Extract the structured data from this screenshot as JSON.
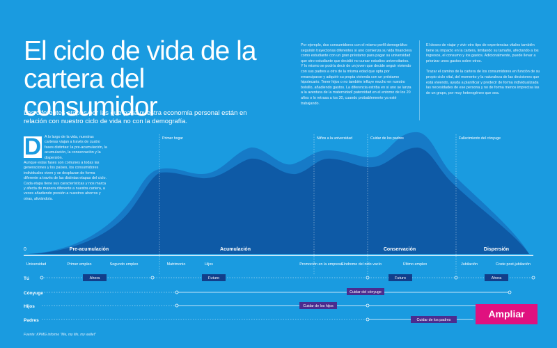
{
  "title": "El ciclo de vida de la cartera del consumidor",
  "subtitle": "Las diferentes etapas por las que pasa nuestra economía personal están en relación con nuestro ciclo de vida no con la demografía.",
  "column1": "Por ejemplo, dos consumidores con el mismo perfil demográfico seguirán trayectorias diferentes si uno comienza su vida financiera como estudiante con un gran préstamo para pagar su universidad que otro estudiante que decidió no cursar estudios universitarios. Y lo mismo se podría decir de un joven que decide seguir viviendo con sus padres a otro de la misma edad que opta por emanciparse y adquirir su propia vivienda con un préstamo hipotecario. Tener hijos o no también influye mucho en nuestro bolsillo, añadiendo gastos. La diferencia estriba en si uno se lanza a la aventura de la maternidad/ paternidad en el entorno de los 20 años o lo retrasa a los 30, cuando probablemente ya esté trabajando.",
  "column2a": "El deseo de viajar y vivir otro tipo de experiencias vitales también tiene su impacto en la cartera, limitando su tamaño, afectando a los ingresos, el consumo y los gastos. Adicionalmente, puede llevar a priorizar unos gastos sobre otros.",
  "column2b": "Trazar el camino de la cartera de los consumidores en función de su propio ciclo vital, del momento y la naturaleza de las decisiones que está viviendo, ayuda a planificar y predecir de forma individualizada las necesidades de ese persona y no de forma menos imprecisa las de un grupo, por muy heterogéneo que sea.",
  "dropcap": "D",
  "intro_first": "A lo largo de la vida, nuestras carteras viajan a través de cuatro fases distintas: la pre-acumulación, la acumulación, la conservación y la dispersión.",
  "intro_rest": "Aunque estas fases son comunes a todas las generaciones y los países, los consumidores individuales viven y se desplazan de forma diferente a través de las distintas etapas del ciclo. Cada etapa tiene sus características y nos marca y afecta de manera diferente a nuestra cartera, a veces añadiendo presión a nuestros ahorros y otras, aliviándola.",
  "zero": "0",
  "top_markers": [
    "Primer hogar",
    "Niños a la universidad",
    "Cuidar de los padres",
    "Fallecimiento del cónyuge"
  ],
  "phases": [
    "Pre-acumulación",
    "Acumulación",
    "Conservación",
    "Dispersión"
  ],
  "events": [
    "Universidad",
    "Primer empleo",
    "Segundo empleo",
    "Matrimonio",
    "Hijos",
    "Promoción en la empresa",
    "Síndrome del nido vacío",
    "Último empleo",
    "Jubilación",
    "Coste post-jubilación"
  ],
  "rows": [
    "Tú",
    "Cónyuge",
    "Hijos",
    "Padres"
  ],
  "tags": [
    "Ahora",
    "Futuro",
    "Futuro",
    "Ahora",
    "Cuidar del cónyuge",
    "Cuidar de los hijos",
    "Cuidar de los padres"
  ],
  "ampliar": "Ampliar",
  "source": "Fuente: KPMG informe \"Me, my life, my wallet\"",
  "colors": {
    "background": "#1a9be0",
    "mountain_light": "#1677c4",
    "mountain_dark": "#0e5aa6",
    "tag": "#123e8a",
    "tag_purple": "#4b2c8f",
    "ampliar": "#e0117f"
  }
}
